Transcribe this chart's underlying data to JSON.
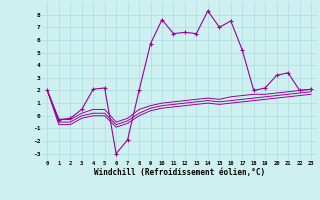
{
  "xlabel": "Windchill (Refroidissement éolien,°C)",
  "background_color": "#cff0f0",
  "grid_color": "#aadddd",
  "line_color": "#990099",
  "x_hours": [
    0,
    1,
    2,
    3,
    4,
    5,
    6,
    7,
    8,
    9,
    10,
    11,
    12,
    13,
    14,
    15,
    16,
    17,
    18,
    19,
    20,
    21,
    22,
    23
  ],
  "windchill": [
    2.0,
    -0.3,
    -0.2,
    0.5,
    2.1,
    2.2,
    -3.0,
    -1.9,
    2.0,
    5.7,
    7.6,
    6.5,
    6.6,
    6.5,
    8.3,
    7.0,
    7.5,
    5.2,
    2.0,
    2.2,
    3.2,
    3.4,
    2.0,
    2.1
  ],
  "line2": [
    2.0,
    -0.3,
    -0.3,
    0.2,
    0.5,
    0.5,
    -0.5,
    -0.2,
    0.5,
    0.8,
    1.0,
    1.1,
    1.2,
    1.3,
    1.4,
    1.3,
    1.5,
    1.6,
    1.7,
    1.7,
    1.8,
    1.9,
    2.0,
    2.1
  ],
  "line3": [
    2.0,
    -0.5,
    -0.5,
    0.0,
    0.2,
    0.2,
    -0.7,
    -0.4,
    0.2,
    0.6,
    0.8,
    0.9,
    1.0,
    1.1,
    1.2,
    1.1,
    1.2,
    1.3,
    1.4,
    1.5,
    1.6,
    1.7,
    1.8,
    1.9
  ],
  "line4": [
    2.0,
    -0.7,
    -0.7,
    -0.2,
    0.0,
    0.0,
    -0.9,
    -0.6,
    0.0,
    0.4,
    0.6,
    0.7,
    0.8,
    0.9,
    1.0,
    0.9,
    1.0,
    1.1,
    1.2,
    1.3,
    1.4,
    1.5,
    1.6,
    1.7
  ],
  "ylim": [
    -3.5,
    9.0
  ],
  "xlim": [
    -0.5,
    23.5
  ],
  "yticks": [
    -3,
    -2,
    -1,
    0,
    1,
    2,
    3,
    4,
    5,
    6,
    7,
    8
  ]
}
